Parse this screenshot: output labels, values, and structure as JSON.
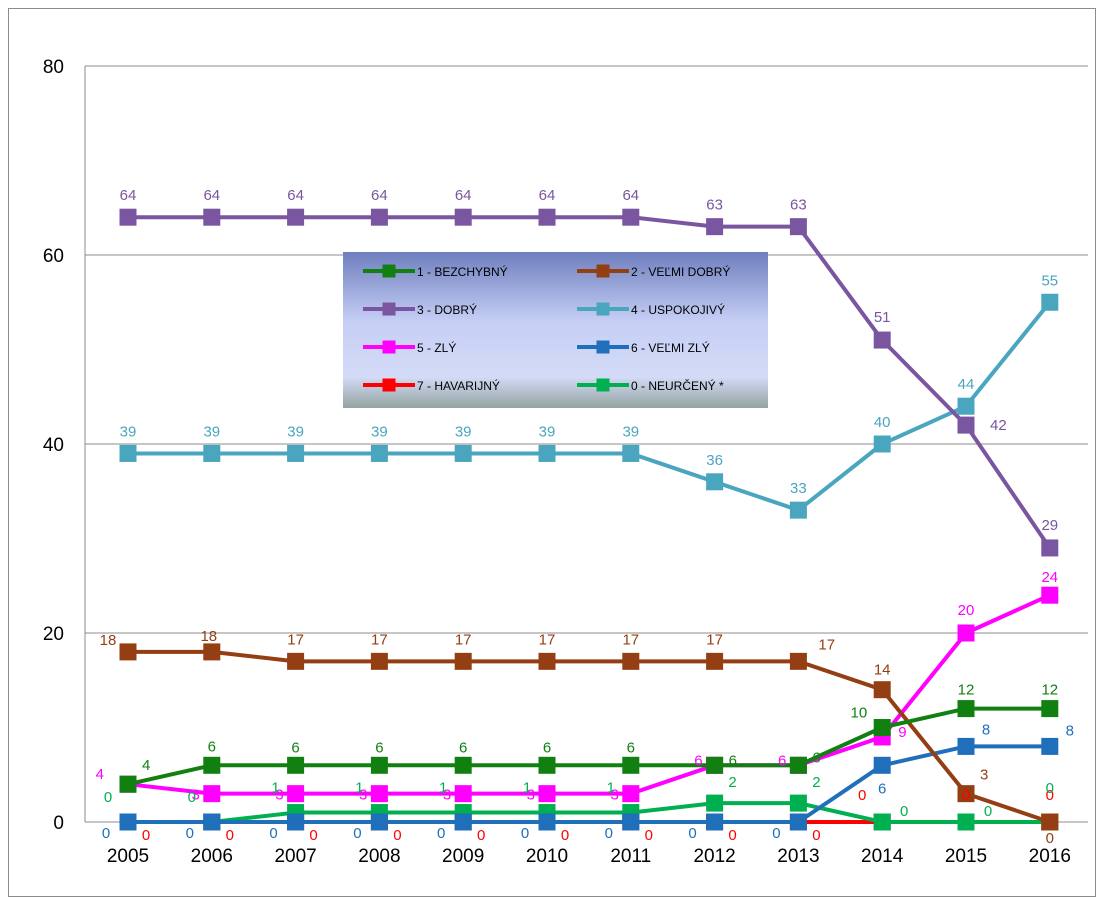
{
  "chart_data": {
    "type": "line",
    "title": "",
    "xlabel": "",
    "ylabel": "",
    "ylim": [
      0,
      80
    ],
    "yticks": [
      "0",
      "20",
      "40",
      "60",
      "80"
    ],
    "grid": true,
    "legend_position": "top-center",
    "categories": [
      "2005",
      "2006",
      "2007",
      "2008",
      "2009",
      "2010",
      "2011",
      "2012",
      "2013",
      "2014",
      "2015",
      "2016"
    ],
    "series": [
      {
        "name": "1 - BEZCHYBNÝ",
        "color": "#118011",
        "values": [
          4,
          6,
          6,
          6,
          6,
          6,
          6,
          6,
          6,
          10,
          12,
          12
        ]
      },
      {
        "name": "2 - VEĽMI DOBRÝ",
        "color": "#943f13",
        "values": [
          18,
          18,
          17,
          17,
          17,
          17,
          17,
          17,
          17,
          14,
          3,
          0
        ]
      },
      {
        "name": "3 - DOBRÝ",
        "color": "#7a55a0",
        "values": [
          64,
          64,
          64,
          64,
          64,
          64,
          64,
          63,
          63,
          51,
          42,
          29
        ]
      },
      {
        "name": "4 - USPOKOJIVÝ",
        "color": "#4aa5bf",
        "values": [
          39,
          39,
          39,
          39,
          39,
          39,
          39,
          36,
          33,
          40,
          44,
          55
        ]
      },
      {
        "name": "5 - ZLÝ",
        "color": "#ff00ff",
        "values": [
          4,
          3,
          3,
          3,
          3,
          3,
          3,
          6,
          6,
          9,
          20,
          24
        ]
      },
      {
        "name": "6 - VEĽMI ZLÝ",
        "color": "#1f6fba",
        "values": [
          0,
          0,
          0,
          0,
          0,
          0,
          0,
          0,
          0,
          6,
          8,
          8
        ]
      },
      {
        "name": "7 - HAVARIJNÝ",
        "color": "#ff0000",
        "values": [
          0,
          0,
          0,
          0,
          0,
          0,
          0,
          0,
          0,
          0,
          0,
          0
        ]
      },
      {
        "name": "0 - NEURČENÝ *",
        "color": "#00b050",
        "values": [
          0,
          0,
          1,
          1,
          1,
          1,
          1,
          2,
          2,
          0,
          0,
          0
        ]
      }
    ]
  }
}
